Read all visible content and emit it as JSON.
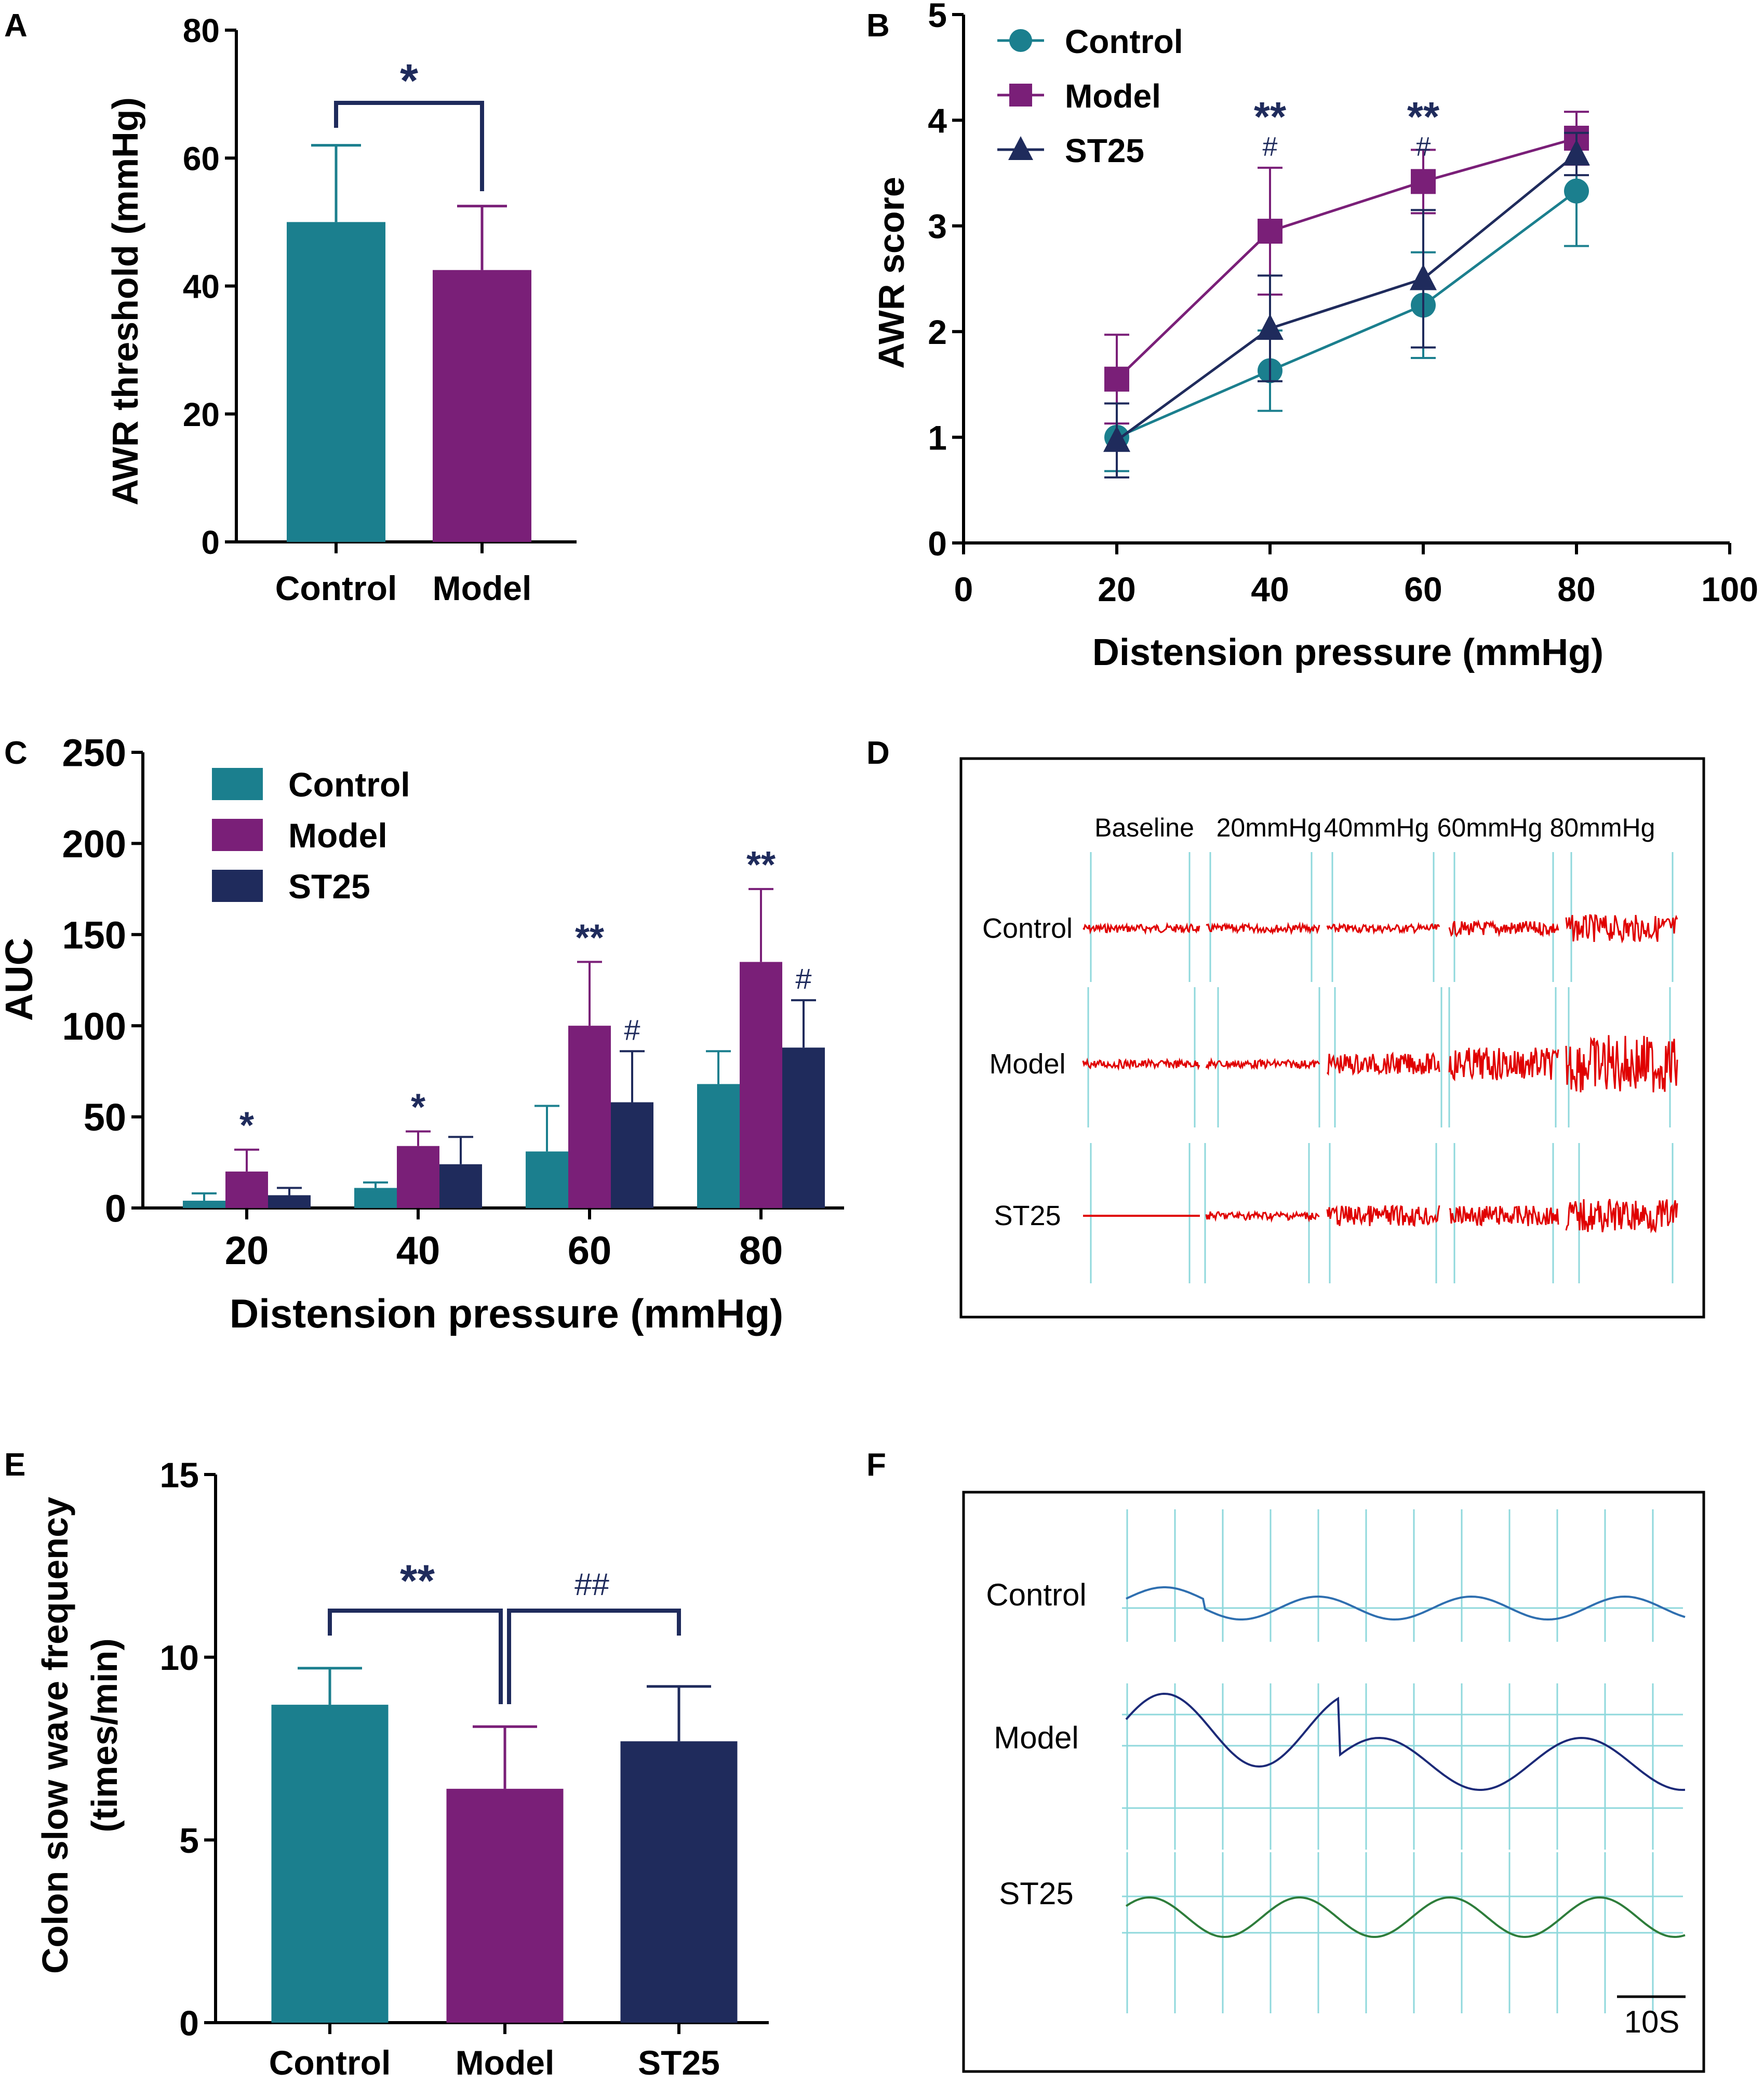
{
  "colors": {
    "control": "#1b7f8e",
    "model": "#7a1f78",
    "st25": "#1f2b5c",
    "axis": "#000000",
    "sig": "#1f2b5c",
    "trace_red": "#e00000",
    "grid": "#8fd8dc",
    "trace_control": "#2f6fb0",
    "trace_model": "#1c2a78",
    "trace_st25": "#2e7d3b"
  },
  "panels": {
    "A": {
      "letter": "A",
      "chart_data": {
        "type": "bar",
        "title": "",
        "xlabel": "",
        "ylabel": "AWR threshold (mmHg)",
        "ylim": [
          0,
          80
        ],
        "yticks": [
          "0",
          "20",
          "40",
          "60",
          "80"
        ],
        "categories": [
          "Control",
          "Model"
        ],
        "values": [
          50,
          42.5
        ],
        "errors": [
          12,
          10
        ],
        "annotations": [
          {
            "text": "*",
            "between": [
              "Control",
              "Model"
            ]
          }
        ]
      }
    },
    "B": {
      "letter": "B",
      "chart_data": {
        "type": "line",
        "xlabel": "Distension pressure (mmHg)",
        "ylabel": "AWR score",
        "xlim": [
          0,
          100
        ],
        "ylim": [
          0,
          5
        ],
        "xticks": [
          "0",
          "20",
          "40",
          "60",
          "80",
          "100"
        ],
        "yticks": [
          "0",
          "1",
          "2",
          "3",
          "4",
          "5"
        ],
        "x": [
          20,
          40,
          60,
          80
        ],
        "series": [
          {
            "name": "Control",
            "marker": "circle",
            "values": [
              1.0,
              1.63,
              2.25,
              3.33
            ],
            "errors": [
              0.32,
              0.38,
              0.5,
              0.52
            ]
          },
          {
            "name": "Model",
            "marker": "square",
            "values": [
              1.55,
              2.95,
              3.42,
              3.83
            ],
            "errors": [
              0.42,
              0.6,
              0.3,
              0.25
            ]
          },
          {
            "name": "ST25",
            "marker": "triangle",
            "values": [
              0.97,
              2.03,
              2.5,
              3.68
            ],
            "errors": [
              0.35,
              0.5,
              0.65,
              0.2
            ]
          }
        ],
        "annotations": [
          {
            "x": 40,
            "top": "**",
            "bottom": "#"
          },
          {
            "x": 60,
            "top": "**",
            "bottom": "#"
          }
        ]
      }
    },
    "C": {
      "letter": "C",
      "chart_data": {
        "type": "bar",
        "xlabel": "Distension pressure (mmHg)",
        "ylabel": "AUC",
        "ylim": [
          0,
          250
        ],
        "yticks": [
          "0",
          "50",
          "100",
          "150",
          "200",
          "250"
        ],
        "categories": [
          "20",
          "40",
          "60",
          "80"
        ],
        "series": [
          {
            "name": "Control",
            "values": [
              4,
              11,
              31,
              68
            ],
            "errors": [
              4,
              3,
              25,
              18
            ]
          },
          {
            "name": "Model",
            "values": [
              20,
              34,
              100,
              135
            ],
            "errors": [
              12,
              8,
              35,
              40
            ]
          },
          {
            "name": "ST25",
            "values": [
              7,
              24,
              58,
              88
            ],
            "errors": [
              4,
              15,
              28,
              26
            ]
          }
        ],
        "annotations": [
          {
            "category": "20",
            "series": "Model",
            "text": "*"
          },
          {
            "category": "40",
            "series": "Model",
            "text": "*"
          },
          {
            "category": "60",
            "series": "Model",
            "text": "**"
          },
          {
            "category": "80",
            "series": "Model",
            "text": "**"
          },
          {
            "category": "60",
            "series": "ST25",
            "text": "#"
          },
          {
            "category": "80",
            "series": "ST25",
            "text": "#"
          }
        ]
      }
    },
    "D": {
      "letter": "D",
      "columns": [
        "Baseline",
        "20mmHg",
        "40mmHg",
        "60mmHg",
        "80mmHg"
      ],
      "rows": [
        "Control",
        "Model",
        "ST25"
      ],
      "amplitude": [
        [
          1,
          1,
          1,
          2,
          4
        ],
        [
          1,
          1,
          3,
          5,
          9
        ],
        [
          0,
          1,
          3,
          3,
          5
        ]
      ]
    },
    "E": {
      "letter": "E",
      "chart_data": {
        "type": "bar",
        "xlabel": "",
        "ylabel": "Colon slow wave frequency",
        "ylabel2": "(times/min)",
        "ylim": [
          0,
          15
        ],
        "yticks": [
          "0",
          "5",
          "10",
          "15"
        ],
        "categories": [
          "Control",
          "Model",
          "ST25"
        ],
        "values": [
          8.7,
          6.4,
          7.7
        ],
        "errors": [
          1.0,
          1.7,
          1.5
        ],
        "annotations": [
          {
            "text": "**",
            "between": [
              "Control",
              "Model"
            ]
          },
          {
            "text": "##",
            "between": [
              "Model",
              "ST25"
            ]
          }
        ]
      }
    },
    "F": {
      "letter": "F",
      "rows": [
        "Control",
        "Model",
        "ST25"
      ],
      "scale_label": "10S"
    }
  }
}
